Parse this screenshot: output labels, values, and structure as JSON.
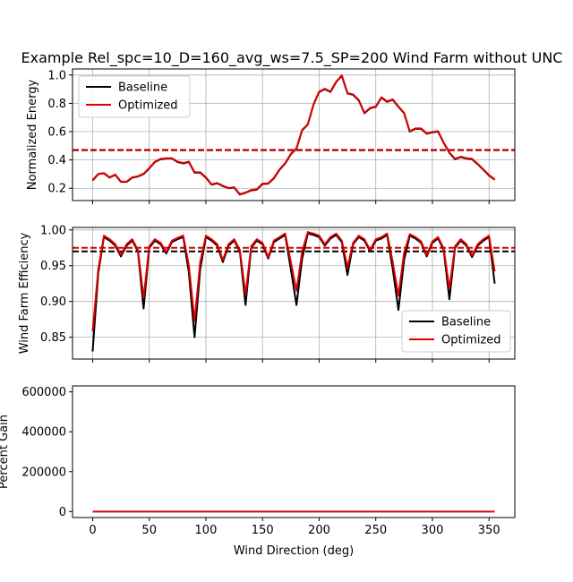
{
  "title": "Example Rel_spc=10_D=160_avg_ws=7.5_SP=200 Wind Farm without UNC",
  "colors": {
    "baseline": "#000000",
    "optimized": "#dd0000",
    "grid": "#b0b0b0"
  },
  "chart_data": [
    {
      "type": "line",
      "ylabel": "Normalized Energy",
      "xlim": [
        -17.75,
        372.75
      ],
      "ylim": [
        0.113,
        1.043
      ],
      "yticks": [
        0.2,
        0.4,
        0.6,
        0.8,
        1.0
      ],
      "ytick_labels": [
        "0.2",
        "0.4",
        "0.6",
        "0.8",
        "1.0"
      ],
      "grid": true,
      "legend": {
        "placement": "top-left",
        "entries": [
          "Baseline",
          "Optimized"
        ]
      },
      "x": [
        0,
        5,
        10,
        15,
        20,
        25,
        30,
        35,
        40,
        45,
        50,
        55,
        60,
        65,
        70,
        75,
        80,
        85,
        90,
        95,
        100,
        105,
        110,
        115,
        120,
        125,
        130,
        135,
        140,
        145,
        150,
        155,
        160,
        165,
        170,
        175,
        180,
        185,
        190,
        195,
        200,
        205,
        210,
        215,
        220,
        225,
        230,
        235,
        240,
        245,
        250,
        255,
        260,
        265,
        270,
        275,
        280,
        285,
        290,
        295,
        300,
        305,
        310,
        315,
        320,
        325,
        330,
        335,
        340,
        345,
        350,
        355
      ],
      "series": [
        {
          "name": "Baseline",
          "color_key": "baseline",
          "values": [
            0.255,
            0.3,
            0.305,
            0.275,
            0.295,
            0.245,
            0.245,
            0.275,
            0.283,
            0.3,
            0.34,
            0.385,
            0.405,
            0.41,
            0.41,
            0.385,
            0.375,
            0.385,
            0.31,
            0.31,
            0.275,
            0.225,
            0.235,
            0.215,
            0.2,
            0.205,
            0.155,
            0.168,
            0.185,
            0.19,
            0.23,
            0.232,
            0.27,
            0.33,
            0.375,
            0.44,
            0.48,
            0.61,
            0.65,
            0.79,
            0.88,
            0.9,
            0.88,
            0.95,
            0.995,
            0.87,
            0.86,
            0.82,
            0.73,
            0.765,
            0.775,
            0.84,
            0.81,
            0.825,
            0.775,
            0.73,
            0.6,
            0.62,
            0.62,
            0.585,
            0.595,
            0.6,
            0.52,
            0.45,
            0.405,
            0.42,
            0.41,
            0.405,
            0.37,
            0.33,
            0.29,
            0.26
          ]
        },
        {
          "name": "Optimized",
          "color_key": "optimized",
          "values": [
            0.258,
            0.302,
            0.307,
            0.277,
            0.297,
            0.247,
            0.247,
            0.277,
            0.285,
            0.303,
            0.343,
            0.388,
            0.408,
            0.412,
            0.412,
            0.388,
            0.378,
            0.388,
            0.313,
            0.313,
            0.278,
            0.228,
            0.237,
            0.218,
            0.202,
            0.207,
            0.158,
            0.17,
            0.188,
            0.193,
            0.233,
            0.235,
            0.273,
            0.333,
            0.378,
            0.443,
            0.483,
            0.613,
            0.653,
            0.793,
            0.883,
            0.903,
            0.883,
            0.953,
            0.998,
            0.873,
            0.863,
            0.823,
            0.733,
            0.768,
            0.778,
            0.843,
            0.813,
            0.828,
            0.778,
            0.733,
            0.603,
            0.623,
            0.623,
            0.588,
            0.598,
            0.603,
            0.523,
            0.453,
            0.408,
            0.423,
            0.413,
            0.408,
            0.373,
            0.333,
            0.293,
            0.263
          ]
        }
      ],
      "hlines": [
        {
          "name": "Baseline mean",
          "color_key": "baseline",
          "value": 0.469
        },
        {
          "name": "Optimized mean",
          "color_key": "optimized",
          "value": 0.471
        }
      ]
    },
    {
      "type": "line",
      "ylabel": "Wind Farm Efficiency",
      "xlim": [
        -17.75,
        372.75
      ],
      "ylim": [
        0.8195,
        1.0035
      ],
      "yticks": [
        0.85,
        0.9,
        0.95,
        1.0
      ],
      "ytick_labels": [
        "0.85",
        "0.90",
        "0.95",
        "1.00"
      ],
      "grid": true,
      "legend": {
        "placement": "lower-right",
        "entries": [
          "Baseline",
          "Optimized"
        ]
      },
      "x": [
        0,
        5,
        10,
        15,
        20,
        25,
        30,
        35,
        40,
        45,
        50,
        55,
        60,
        65,
        70,
        75,
        80,
        85,
        90,
        95,
        100,
        105,
        110,
        115,
        120,
        125,
        130,
        135,
        140,
        145,
        150,
        155,
        160,
        165,
        170,
        175,
        180,
        185,
        190,
        195,
        200,
        205,
        210,
        215,
        220,
        225,
        230,
        235,
        240,
        245,
        250,
        255,
        260,
        265,
        270,
        275,
        280,
        285,
        290,
        295,
        300,
        305,
        310,
        315,
        320,
        325,
        330,
        335,
        340,
        345,
        350,
        355
      ],
      "series": [
        {
          "name": "Baseline",
          "color_key": "baseline",
          "values": [
            0.83,
            0.94,
            0.99,
            0.985,
            0.978,
            0.963,
            0.978,
            0.985,
            0.97,
            0.89,
            0.975,
            0.985,
            0.98,
            0.967,
            0.983,
            0.987,
            0.99,
            0.94,
            0.85,
            0.945,
            0.99,
            0.985,
            0.978,
            0.955,
            0.978,
            0.985,
            0.97,
            0.895,
            0.975,
            0.985,
            0.98,
            0.96,
            0.983,
            0.988,
            0.993,
            0.945,
            0.895,
            0.96,
            0.995,
            0.993,
            0.99,
            0.978,
            0.988,
            0.993,
            0.983,
            0.937,
            0.98,
            0.99,
            0.985,
            0.97,
            0.985,
            0.988,
            0.993,
            0.945,
            0.888,
            0.958,
            0.992,
            0.988,
            0.982,
            0.963,
            0.982,
            0.988,
            0.972,
            0.903,
            0.975,
            0.985,
            0.978,
            0.962,
            0.978,
            0.985,
            0.99,
            0.925
          ]
        },
        {
          "name": "Optimized",
          "color_key": "optimized",
          "values": [
            0.858,
            0.945,
            0.992,
            0.987,
            0.98,
            0.965,
            0.98,
            0.987,
            0.972,
            0.905,
            0.977,
            0.987,
            0.982,
            0.969,
            0.985,
            0.989,
            0.992,
            0.95,
            0.873,
            0.955,
            0.992,
            0.987,
            0.98,
            0.958,
            0.98,
            0.987,
            0.972,
            0.91,
            0.977,
            0.987,
            0.982,
            0.962,
            0.985,
            0.99,
            0.995,
            0.955,
            0.915,
            0.97,
            0.997,
            0.995,
            0.992,
            0.98,
            0.99,
            0.995,
            0.985,
            0.948,
            0.982,
            0.992,
            0.987,
            0.972,
            0.987,
            0.99,
            0.995,
            0.955,
            0.908,
            0.968,
            0.994,
            0.99,
            0.984,
            0.965,
            0.984,
            0.99,
            0.974,
            0.918,
            0.977,
            0.987,
            0.98,
            0.964,
            0.98,
            0.987,
            0.992,
            0.942
          ]
        }
      ],
      "hlines": [
        {
          "name": "Baseline mean",
          "color_key": "baseline",
          "value": 0.97
        },
        {
          "name": "Optimized mean",
          "color_key": "optimized",
          "value": 0.975
        }
      ]
    },
    {
      "type": "line",
      "ylabel": "Percent Gain",
      "xlabel": "Wind Direction (deg)",
      "xlim": [
        -17.75,
        372.75
      ],
      "ylim": [
        -30000,
        630000
      ],
      "yticks": [
        0,
        200000,
        400000,
        600000
      ],
      "ytick_labels": [
        "0",
        "200000",
        "400000",
        "600000"
      ],
      "xticks": [
        0,
        50,
        100,
        150,
        200,
        250,
        300,
        350
      ],
      "xtick_labels": [
        "0",
        "50",
        "100",
        "150",
        "200",
        "250",
        "300",
        "350"
      ],
      "grid": false,
      "x": [
        0,
        355
      ],
      "series": [
        {
          "name": "Percent Gain",
          "color_key": "optimized",
          "values": [
            0,
            0
          ]
        }
      ]
    }
  ]
}
